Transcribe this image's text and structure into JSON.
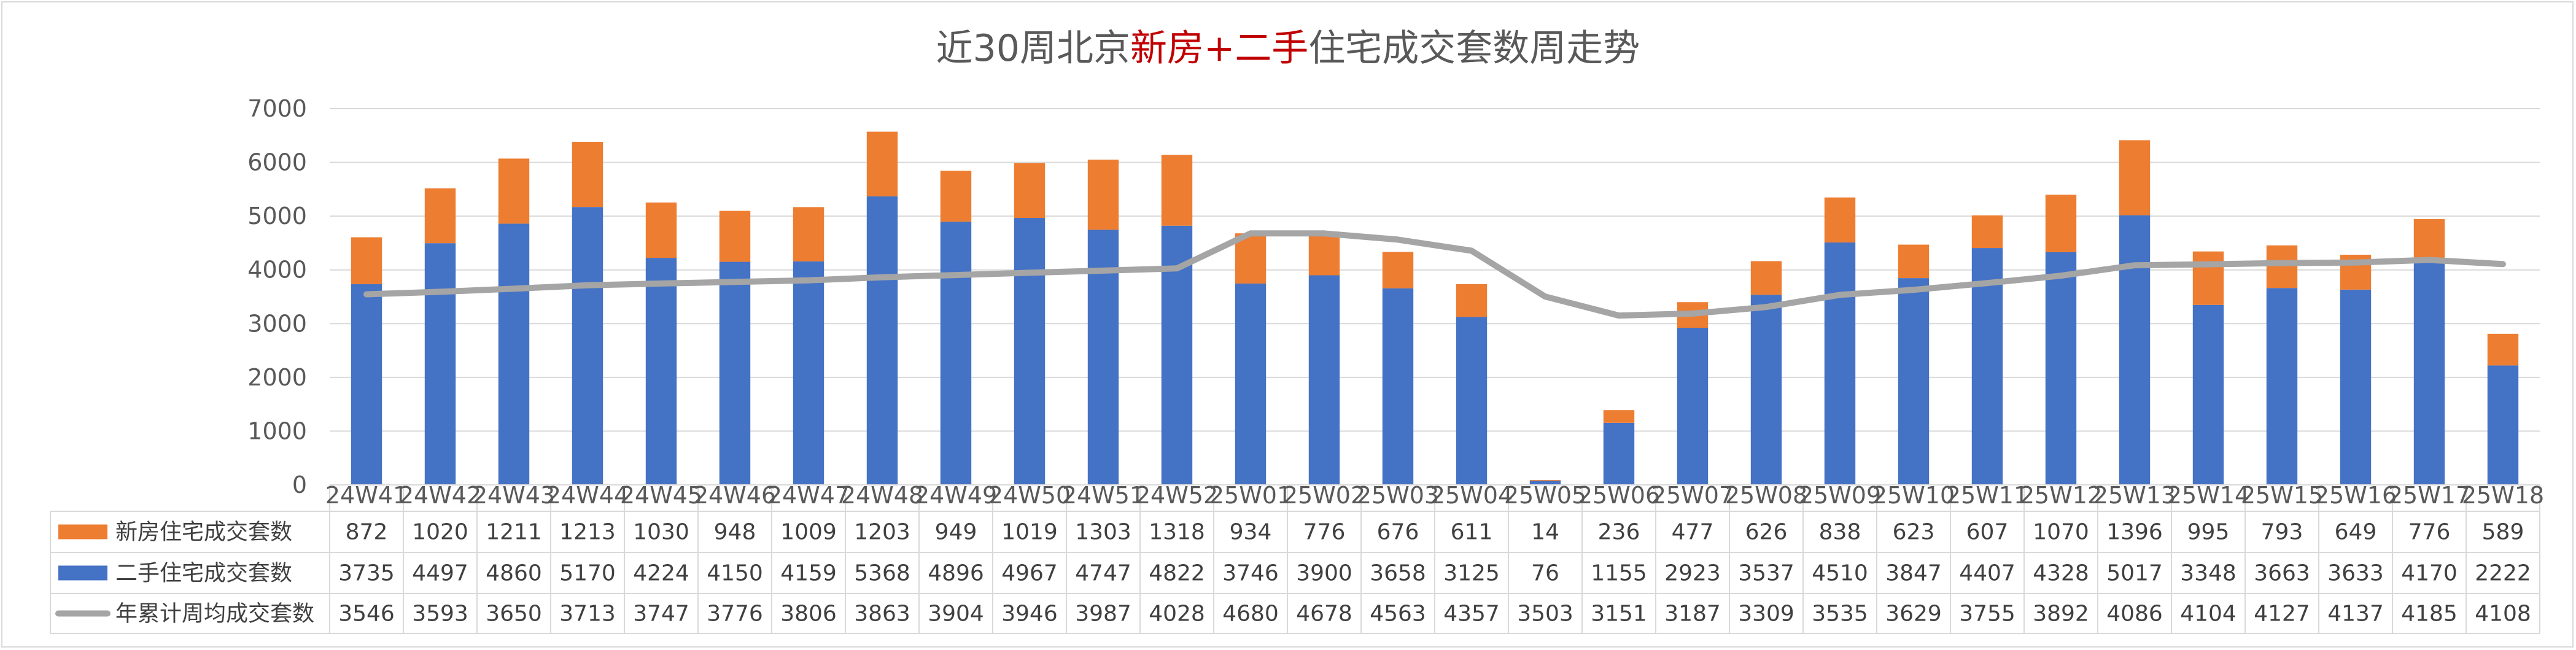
{
  "chart_data": {
    "type": "bar",
    "stacked": true,
    "title_parts": [
      {
        "text": "近30周北京",
        "highlight": false
      },
      {
        "text": "新房",
        "highlight": true
      },
      {
        "text": "+",
        "highlight": true
      },
      {
        "text": "二手",
        "highlight": true
      },
      {
        "text": "住宅成交套数周走势",
        "highlight": false
      }
    ],
    "ylim": [
      0,
      7000
    ],
    "yticks": [
      "0",
      "1000",
      "2000",
      "3000",
      "4000",
      "5000",
      "6000",
      "7000"
    ],
    "grid": true,
    "legend_placement": "data-table",
    "categories": [
      "24W41",
      "24W42",
      "24W43",
      "24W44",
      "24W45",
      "24W46",
      "24W47",
      "24W48",
      "24W49",
      "24W50",
      "24W51",
      "24W52",
      "25W01",
      "25W02",
      "25W03",
      "25W04",
      "25W05",
      "25W06",
      "25W07",
      "25W08",
      "25W09",
      "25W10",
      "25W11",
      "25W12",
      "25W13",
      "25W14",
      "25W15",
      "25W16",
      "25W17",
      "25W18"
    ],
    "series": [
      {
        "name": "新房住宅成交套数",
        "type": "bar",
        "color": "#ed7d31",
        "values": [
          872,
          1020,
          1211,
          1213,
          1030,
          948,
          1009,
          1203,
          949,
          1019,
          1303,
          1318,
          934,
          776,
          676,
          611,
          14,
          236,
          477,
          626,
          838,
          623,
          607,
          1070,
          1396,
          995,
          793,
          649,
          776,
          589
        ]
      },
      {
        "name": "二手住宅成交套数",
        "type": "bar",
        "color": "#4472c4",
        "values": [
          3735,
          4497,
          4860,
          5170,
          4224,
          4150,
          4159,
          5368,
          4896,
          4967,
          4747,
          4822,
          3746,
          3900,
          3658,
          3125,
          76,
          1155,
          2923,
          3537,
          4510,
          3847,
          4407,
          4328,
          5017,
          3348,
          3663,
          3633,
          4170,
          2222
        ]
      },
      {
        "name": "年累计周均成交套数",
        "type": "line",
        "color": "#a5a5a5",
        "values": [
          3546,
          3593,
          3650,
          3713,
          3747,
          3776,
          3806,
          3863,
          3904,
          3946,
          3987,
          4028,
          4680,
          4678,
          4563,
          4357,
          3503,
          3151,
          3187,
          3309,
          3535,
          3629,
          3755,
          3892,
          4086,
          4104,
          4127,
          4137,
          4185,
          4108
        ]
      }
    ]
  }
}
